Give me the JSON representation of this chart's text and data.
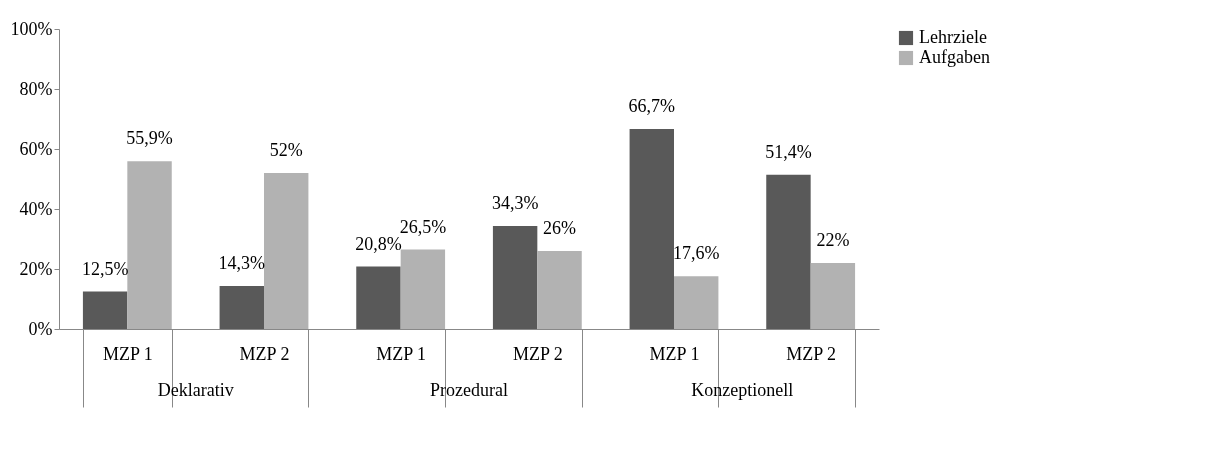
{
  "chart_data": {
    "type": "bar",
    "categories": [
      "MZP 1",
      "MZP 2",
      "MZP 1",
      "MZP 2",
      "MZP 1",
      "MZP 2"
    ],
    "series": [
      {
        "name": "Lehrziele",
        "color": "#595959",
        "values": [
          12.5,
          14.3,
          20.8,
          34.3,
          66.7,
          51.4
        ],
        "value_labels": [
          "12,5%",
          "14,3%",
          "20,8%",
          "34,3%",
          "66,7%",
          "51,4%"
        ]
      },
      {
        "name": "Aufgaben",
        "color": "#b2b2b2",
        "values": [
          55.9,
          52,
          26.5,
          26,
          17.6,
          22
        ],
        "value_labels": [
          "55,9%",
          "52%",
          "26,5%",
          "26%",
          "17,6%",
          "22%"
        ]
      }
    ],
    "annotations": [
      "Deklarativ",
      "Prozedural",
      "Konzeptionell"
    ],
    "ylim": [
      0,
      100
    ],
    "yticks": [
      {
        "value": 0,
        "label": "0%"
      },
      {
        "value": 20,
        "label": "20%"
      },
      {
        "value": 40,
        "label": "40%"
      },
      {
        "value": 60,
        "label": "60%"
      },
      {
        "value": 80,
        "label": "80%"
      },
      {
        "value": 100,
        "label": "100%"
      }
    ],
    "grid": false,
    "legend": "right"
  }
}
